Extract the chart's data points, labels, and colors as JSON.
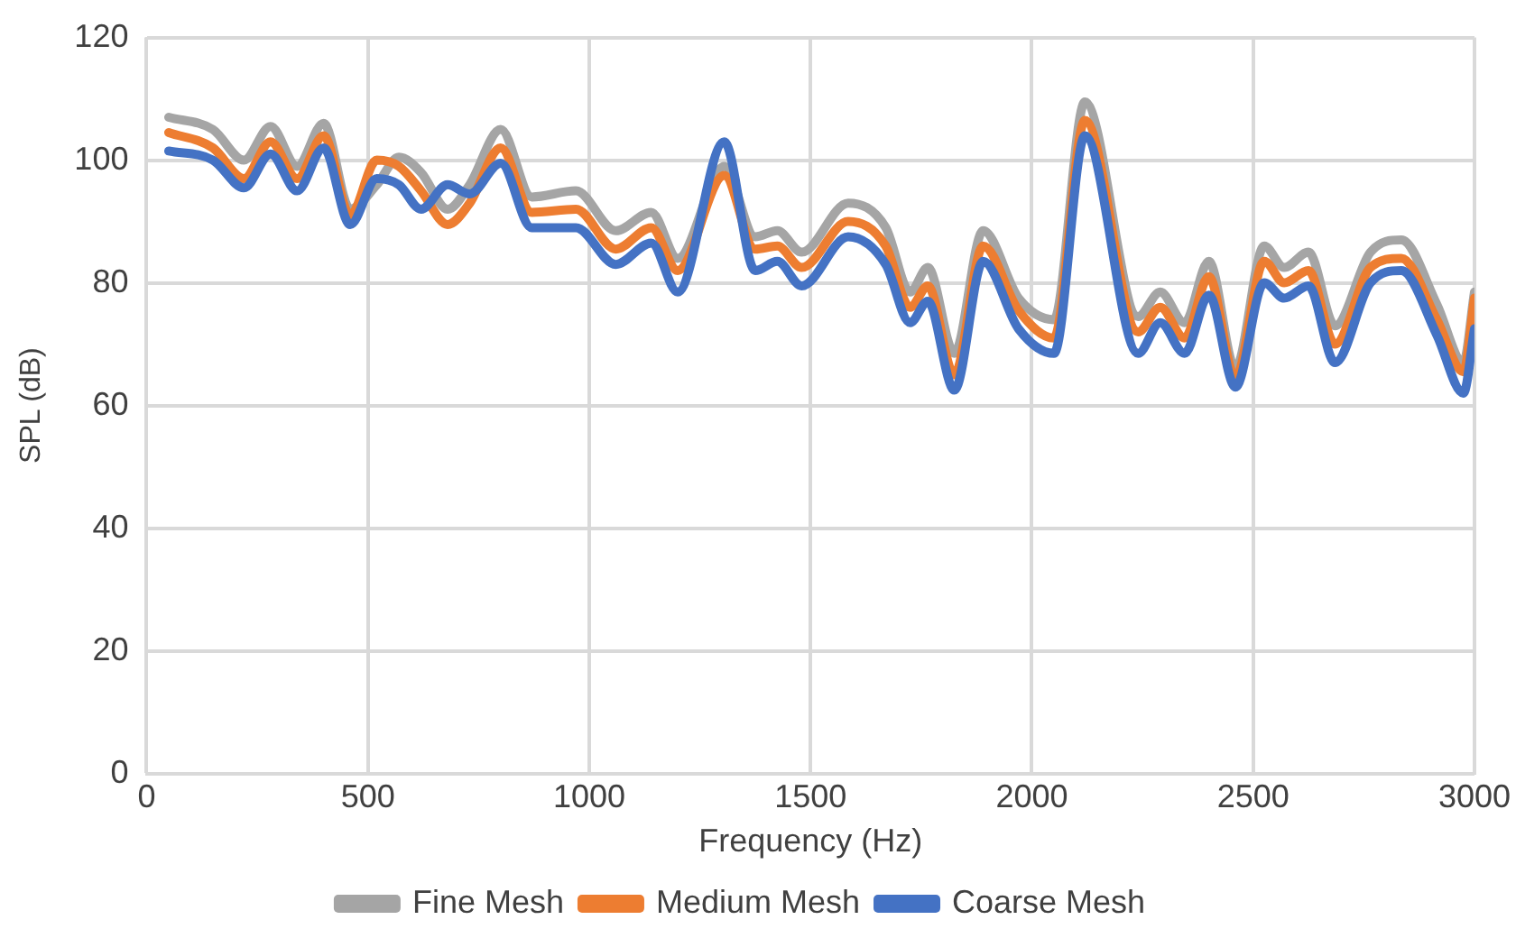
{
  "chart_data": {
    "type": "line",
    "xlabel": "Frequency (Hz)",
    "ylabel": "SPL (dB)",
    "x": [
      50,
      150,
      220,
      280,
      340,
      400,
      460,
      520,
      570,
      620,
      680,
      730,
      800,
      870,
      970,
      1060,
      1140,
      1200,
      1305,
      1375,
      1425,
      1480,
      1585,
      1670,
      1725,
      1765,
      1825,
      1890,
      1970,
      2050,
      2120,
      2240,
      2290,
      2345,
      2400,
      2460,
      2525,
      2570,
      2625,
      2685,
      2765,
      2835,
      2915,
      2975,
      3000
    ],
    "series": [
      {
        "name": "Fine Mesh",
        "color": "#a5a5a5",
        "values": [
          107,
          105,
          100,
          105.5,
          99,
          106,
          92,
          96,
          100.5,
          98,
          92,
          96,
          105,
          94,
          95,
          88.5,
          91.5,
          84,
          99,
          87.5,
          88.5,
          85,
          93,
          89,
          78.5,
          82.5,
          68.5,
          88.5,
          77.5,
          74,
          109.5,
          74.5,
          78.5,
          73.5,
          83.5,
          66,
          86,
          82.5,
          85,
          73,
          85,
          87,
          76.5,
          67,
          78.5
        ]
      },
      {
        "name": "Medium Mesh",
        "color": "#ed7d31",
        "values": [
          104.5,
          102,
          97,
          103,
          97,
          104,
          91,
          100,
          99,
          95,
          89.5,
          93,
          102,
          91.5,
          92,
          85.5,
          89,
          82,
          97.5,
          85.5,
          86,
          82.5,
          90,
          86,
          76,
          79.5,
          65,
          86,
          75.5,
          71,
          106.5,
          72,
          76,
          71,
          81,
          64.5,
          83.5,
          80,
          82,
          70,
          82.5,
          84,
          74,
          65.5,
          77.5
        ]
      },
      {
        "name": "Coarse Mesh",
        "color": "#4472c4",
        "values": [
          101.5,
          100,
          95.5,
          101,
          95,
          102,
          89.5,
          97,
          96,
          92,
          96,
          94.5,
          99.5,
          89,
          89,
          83,
          86.5,
          78.5,
          103,
          82,
          83.5,
          79.5,
          87.5,
          83,
          73.5,
          77,
          62.5,
          83.5,
          72.5,
          68.5,
          104,
          68.5,
          73.5,
          68.5,
          78,
          63,
          80,
          77.5,
          79.5,
          67,
          80,
          82,
          71.5,
          62,
          72.5
        ]
      }
    ],
    "xlim": [
      0,
      3000
    ],
    "xticks": [
      0,
      500,
      1000,
      1500,
      2000,
      2500,
      3000
    ],
    "ylim": [
      0,
      120
    ],
    "yticks": [
      0,
      20,
      40,
      60,
      80,
      100,
      120
    ],
    "grid": true,
    "legend": "bottom",
    "marker": "none",
    "line_style": "solid"
  }
}
